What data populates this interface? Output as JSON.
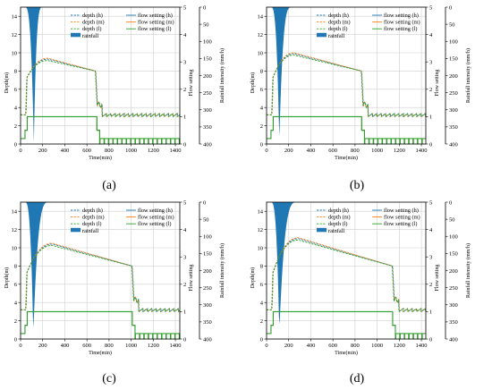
{
  "chart_data": [
    {
      "type": "line",
      "caption": "(a)",
      "xlabel": "Time(min)",
      "ylabel": "Depth(m)",
      "y2label": "Flow setting",
      "y3label": "Rainfall intensity (mm/h)",
      "xlim": [
        0,
        1440
      ],
      "ylim": [
        0,
        15
      ],
      "y2lim": [
        0,
        5
      ],
      "y3lim": [
        0,
        400
      ],
      "xticks": [
        "0",
        "200",
        "400",
        "600",
        "800",
        "1000",
        "1200",
        "1400"
      ],
      "yticks": [
        "0",
        "2",
        "4",
        "6",
        "8",
        "10",
        "12",
        "14"
      ],
      "y2ticks": [
        "0",
        "1",
        "2",
        "3",
        "4",
        "5"
      ],
      "y3ticks": [
        "0",
        "50",
        "100",
        "150",
        "200",
        "250",
        "300",
        "350",
        "400"
      ],
      "legend": [
        "depth (h)",
        "depth (m)",
        "depth (l)",
        "rainfall",
        "flow setting (h)",
        "flow setting (m)",
        "flow setting (l)"
      ],
      "grid": true,
      "rain_start": 40,
      "rain_peak": 120,
      "rain_end": 200,
      "rain_peak_value": 395,
      "depth": {
        "rise_start": 50,
        "start_level": 3.2,
        "peak_time": 250,
        "peak_level": 9.3,
        "plateau_end": 680,
        "plateau_end_level": 8.0,
        "drop_time": 740,
        "base_level": 3.1
      },
      "flow_setting": {
        "high_level": 1.0,
        "high_start": 60,
        "high_end": 690,
        "low_level": 0.2
      }
    },
    {
      "type": "line",
      "caption": "(b)",
      "xlabel": "Time(min)",
      "ylabel": "Depth(m)",
      "y2label": "Flow setting",
      "y3label": "Rainfall intensity (mm/h)",
      "xlim": [
        0,
        1440
      ],
      "ylim": [
        0,
        15
      ],
      "y2lim": [
        0,
        5
      ],
      "y3lim": [
        0,
        400
      ],
      "xticks": [
        "0",
        "200",
        "400",
        "600",
        "800",
        "1000",
        "1200",
        "1400"
      ],
      "yticks": [
        "0",
        "2",
        "4",
        "6",
        "8",
        "10",
        "12",
        "14"
      ],
      "y2ticks": [
        "0",
        "1",
        "2",
        "3",
        "4",
        "5"
      ],
      "y3ticks": [
        "0",
        "50",
        "100",
        "150",
        "200",
        "250",
        "300",
        "350",
        "400"
      ],
      "legend": [
        "depth (h)",
        "depth (m)",
        "depth (l)",
        "rainfall",
        "flow setting (h)",
        "flow setting (m)",
        "flow setting (l)"
      ],
      "grid": true,
      "rain_start": 40,
      "rain_peak": 115,
      "rain_end": 230,
      "rain_peak_value": 390,
      "depth": {
        "rise_start": 50,
        "start_level": 3.2,
        "peak_time": 250,
        "peak_level": 9.9,
        "plateau_end": 860,
        "plateau_end_level": 8.0,
        "drop_time": 920,
        "base_level": 3.1
      },
      "flow_setting": {
        "high_level": 1.0,
        "high_start": 60,
        "high_end": 860,
        "low_level": 0.2
      }
    },
    {
      "type": "line",
      "caption": "(c)",
      "xlabel": "Time(min)",
      "ylabel": "Depth(m)",
      "y2label": "Flow setting",
      "y3label": "Rainfall intensity (mm/h)",
      "xlim": [
        0,
        1440
      ],
      "ylim": [
        0,
        15
      ],
      "y2lim": [
        0,
        5
      ],
      "y3lim": [
        0,
        400
      ],
      "xticks": [
        "0",
        "200",
        "400",
        "600",
        "800",
        "1000",
        "1200",
        "1400"
      ],
      "yticks": [
        "0",
        "2",
        "4",
        "6",
        "8",
        "10",
        "12",
        "14"
      ],
      "y2ticks": [
        "0",
        "1",
        "2",
        "3",
        "4",
        "5"
      ],
      "y3ticks": [
        "0",
        "50",
        "100",
        "150",
        "200",
        "250",
        "300",
        "350",
        "400"
      ],
      "legend": [
        "depth (h)",
        "depth (m)",
        "depth (l)",
        "rainfall",
        "flow setting (h)",
        "flow setting (m)",
        "flow setting (l)"
      ],
      "grid": true,
      "rain_start": 40,
      "rain_peak": 115,
      "rain_end": 260,
      "rain_peak_value": 385,
      "depth": {
        "rise_start": 50,
        "start_level": 3.2,
        "peak_time": 290,
        "peak_level": 10.4,
        "plateau_end": 1010,
        "plateau_end_level": 8.0,
        "drop_time": 1070,
        "base_level": 3.1
      },
      "flow_setting": {
        "high_level": 1.0,
        "high_start": 60,
        "high_end": 1010,
        "low_level": 0.2
      }
    },
    {
      "type": "line",
      "caption": "(d)",
      "xlabel": "Time(min)",
      "ylabel": "Depth(m)",
      "y2label": "Flow setting",
      "y3label": "Rainfall intensity (mm/h)",
      "xlim": [
        0,
        1440
      ],
      "ylim": [
        0,
        15
      ],
      "y2lim": [
        0,
        5
      ],
      "y3lim": [
        0,
        400
      ],
      "xticks": [
        "0",
        "200",
        "400",
        "600",
        "800",
        "1000",
        "1200",
        "1400"
      ],
      "yticks": [
        "0",
        "2",
        "4",
        "6",
        "8",
        "10",
        "12",
        "14"
      ],
      "y2ticks": [
        "0",
        "1",
        "2",
        "3",
        "4",
        "5"
      ],
      "y3ticks": [
        "0",
        "50",
        "100",
        "150",
        "200",
        "250",
        "300",
        "350",
        "400"
      ],
      "legend": [
        "depth (h)",
        "depth (m)",
        "depth (l)",
        "rainfall",
        "flow setting (h)",
        "flow setting (m)",
        "flow setting (l)"
      ],
      "grid": true,
      "rain_start": 40,
      "rain_peak": 115,
      "rain_end": 280,
      "rain_peak_value": 380,
      "depth": {
        "rise_start": 50,
        "start_level": 3.2,
        "peak_time": 290,
        "peak_level": 11.0,
        "plateau_end": 1140,
        "plateau_end_level": 8.0,
        "drop_time": 1200,
        "base_level": 3.1
      },
      "flow_setting": {
        "high_level": 1.0,
        "high_start": 60,
        "high_end": 1140,
        "low_level": 0.2
      }
    }
  ],
  "colors": {
    "depth_h": "#1f77b4",
    "depth_m": "#ff7f0e",
    "depth_l": "#2ca02c",
    "rainfall": "#1f77b4",
    "grid": "#cfcfcf",
    "axis": "#000000"
  }
}
